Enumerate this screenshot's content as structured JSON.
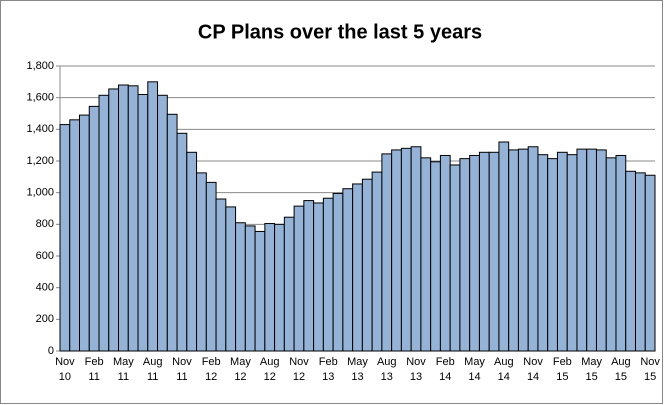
{
  "chart_data": {
    "type": "bar",
    "title": "CP Plans over the last 5 years",
    "categories": [
      "Nov 10",
      null,
      null,
      "Feb 11",
      null,
      null,
      "May 11",
      null,
      null,
      "Aug 11",
      null,
      null,
      "Nov 11",
      null,
      null,
      "Feb 12",
      null,
      null,
      "May 12",
      null,
      null,
      "Aug 12",
      null,
      null,
      "Nov 12",
      null,
      null,
      "Feb 13",
      null,
      null,
      "May 13",
      null,
      null,
      "Aug 13",
      null,
      null,
      "Nov 13",
      null,
      null,
      "Feb 14",
      null,
      null,
      "May 14",
      null,
      null,
      "Aug 14",
      null,
      null,
      "Nov 14",
      null,
      null,
      "Feb 15",
      null,
      null,
      "May 15",
      null,
      null,
      "Aug 15",
      null,
      null,
      "Nov 15"
    ],
    "values": [
      1430,
      1460,
      1490,
      1545,
      1615,
      1655,
      1680,
      1675,
      1620,
      1700,
      1615,
      1495,
      1375,
      1255,
      1125,
      1065,
      960,
      910,
      810,
      790,
      755,
      805,
      800,
      845,
      915,
      950,
      935,
      965,
      995,
      1025,
      1055,
      1085,
      1130,
      1245,
      1270,
      1280,
      1290,
      1220,
      1195,
      1235,
      1175,
      1215,
      1235,
      1255,
      1255,
      1320,
      1270,
      1275,
      1290,
      1240,
      1215,
      1255,
      1240,
      1275,
      1275,
      1270,
      1220,
      1235,
      1135,
      1125,
      1110
    ],
    "color": "#95b3d7",
    "ylim": [
      0,
      1800
    ],
    "yticks": [
      0,
      200,
      400,
      600,
      800,
      {
        "value": 1000,
        "label": "1,000"
      },
      {
        "value": 1200,
        "label": "1,200"
      },
      {
        "value": 1400,
        "label": "1,400"
      },
      {
        "value": 1600,
        "label": "1,600"
      },
      {
        "value": 1800,
        "label": "1,800"
      }
    ],
    "grid": true
  }
}
